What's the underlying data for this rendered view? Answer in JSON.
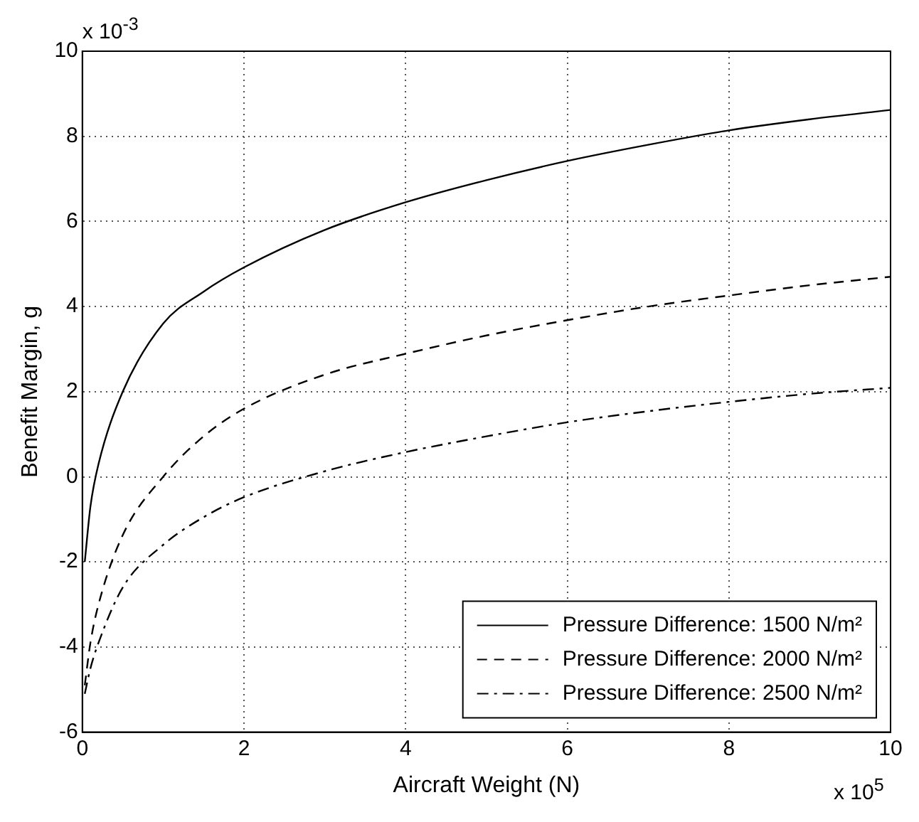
{
  "chart_data": {
    "type": "line",
    "xlabel": "Aircraft Weight (N)",
    "ylabel": "Benefit Margin, g",
    "annotations": [
      "x 10$^{-3}$",
      "x 10$^{5}$"
    ],
    "x": [
      0.03,
      0.1,
      0.2,
      0.5,
      1,
      1.5,
      2,
      3,
      4,
      5,
      6,
      7,
      8,
      9,
      10
    ],
    "series": [
      {
        "name": "Pressure Difference: 1500 N/m²",
        "color": "#000000",
        "line_style": "solid",
        "values": [
          -2.0,
          -0.7,
          0.3,
          2.0,
          3.6,
          4.35,
          4.92,
          5.8,
          6.45,
          6.97,
          7.42,
          7.8,
          8.14,
          8.4,
          8.62
        ]
      },
      {
        "name": "Pressure Difference: 2000 N/m²",
        "color": "#000000",
        "line_style": "dashed",
        "values": [
          -4.9,
          -3.9,
          -3.0,
          -1.37,
          0.0,
          0.95,
          1.6,
          2.4,
          2.89,
          3.32,
          3.68,
          4.0,
          4.26,
          4.5,
          4.7
        ]
      },
      {
        "name": "Pressure Difference: 2500 N/m²",
        "color": "#000000",
        "line_style": "dashdot",
        "values": [
          -5.1,
          -4.5,
          -3.9,
          -2.6,
          -1.6,
          -0.95,
          -0.48,
          0.13,
          0.58,
          0.95,
          1.28,
          1.54,
          1.76,
          1.95,
          2.09
        ]
      }
    ],
    "xlim": [
      0,
      10
    ],
    "xticks": [
      0,
      2,
      4,
      6,
      8,
      10
    ],
    "ylim": [
      -6,
      10
    ],
    "yticks": [
      -6,
      -4,
      -2,
      0,
      2,
      4,
      6,
      8,
      10
    ],
    "grid": true,
    "legend": "bottom right",
    "marker": "none"
  }
}
